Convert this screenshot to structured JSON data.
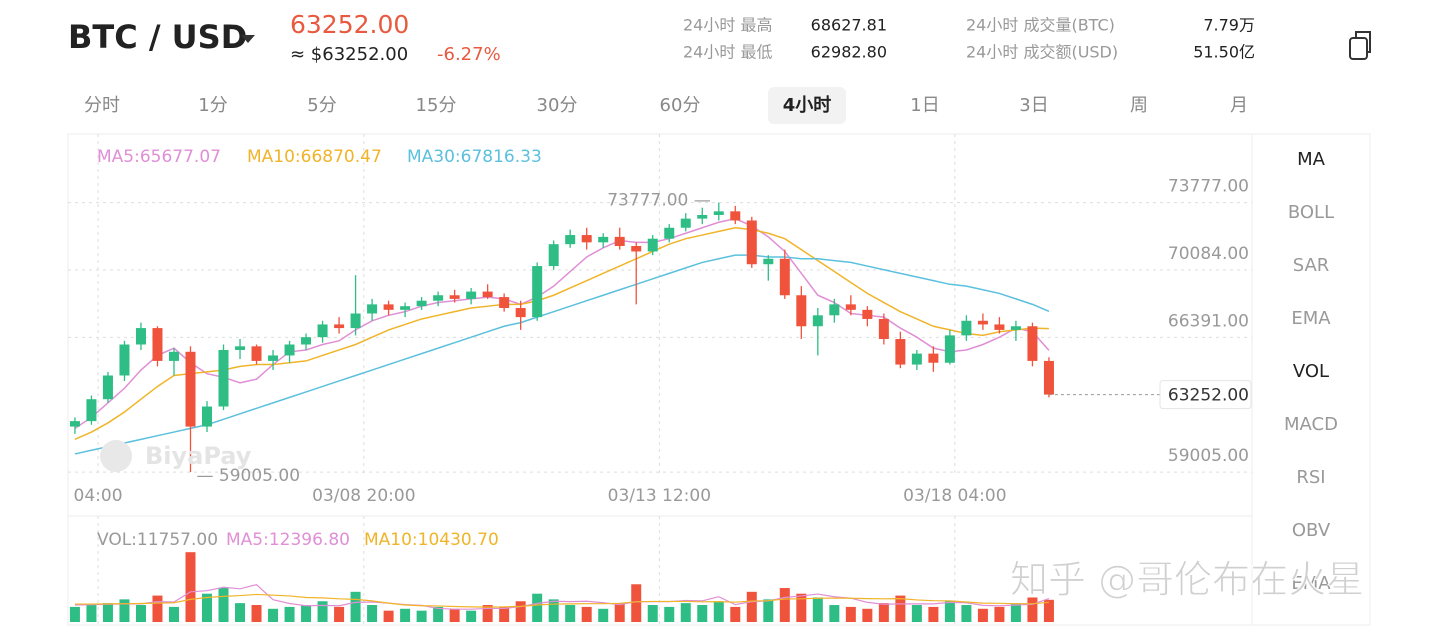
{
  "header": {
    "pair": "BTC / USD",
    "price": "63252.00",
    "approx": "≈ $63252.00",
    "change": "-6.27%",
    "stats": [
      {
        "label": "24小时 最高",
        "value": "68627.81"
      },
      {
        "label": "24小时 最低",
        "value": "62982.80"
      },
      {
        "label": "24小时 成交量(BTC)",
        "value": "7.79万"
      },
      {
        "label": "24小时 成交额(USD)",
        "value": "51.50亿"
      }
    ]
  },
  "timeframes": [
    "分时",
    "1分",
    "5分",
    "15分",
    "30分",
    "60分",
    "4小时",
    "1日",
    "3日",
    "周",
    "月"
  ],
  "active_timeframe": 6,
  "indicators": [
    "MA",
    "BOLL",
    "SAR",
    "EMA",
    "VOL",
    "MACD",
    "RSI",
    "OBV",
    "EMA"
  ],
  "active_indicators": [
    0,
    4
  ],
  "watermarks": [
    "BiyaPay",
    "知乎 @哥伦布在火星"
  ],
  "chart_data": {
    "type": "candlestick",
    "up_color": "#2ebd85",
    "down_color": "#f0533c",
    "xlim": [
      -0.42,
      71.3
    ],
    "xticks": [
      {
        "value": 1.4,
        "label": "04:00"
      },
      {
        "value": 17.5,
        "label": "03/08 20:00"
      },
      {
        "value": 35.4,
        "label": "03/13 12:00"
      },
      {
        "value": 53.3,
        "label": "03/18 04:00"
      }
    ],
    "ylim": [
      58900,
      77540
    ],
    "yticks": [
      {
        "value": 73777,
        "label": "73777.00"
      },
      {
        "value": 70084,
        "label": "70084.00"
      },
      {
        "value": 66391,
        "label": "66391.00"
      },
      {
        "value": 59005,
        "label": "59005.00"
      }
    ],
    "grid": true,
    "open": [
      61500,
      61800,
      63000,
      64300,
      66000,
      66900,
      65100,
      65600,
      61500,
      62600,
      65700,
      65900,
      65100,
      65400,
      66000,
      66400,
      67100,
      66900,
      67700,
      68200,
      67900,
      68100,
      68400,
      68700,
      68500,
      68900,
      68600,
      68000,
      67500,
      70300,
      71500,
      72000,
      71600,
      71900,
      71400,
      71100,
      71800,
      72400,
      72900,
      73100,
      73300,
      72800,
      70400,
      70700,
      68700,
      67000,
      67600,
      68200,
      67900,
      67400,
      66300,
      64900,
      65500,
      65000,
      66500,
      67300,
      67100,
      66800,
      67000,
      65100
    ],
    "high": [
      62000,
      63200,
      64500,
      66200,
      67200,
      67000,
      65800,
      65900,
      62900,
      66000,
      66300,
      66000,
      65700,
      66200,
      66600,
      67300,
      67500,
      69800,
      68500,
      68400,
      68300,
      68600,
      68900,
      69000,
      69100,
      69300,
      68800,
      68400,
      70500,
      71700,
      72300,
      72400,
      72100,
      72400,
      71600,
      72000,
      72600,
      73200,
      73500,
      73777,
      73600,
      73000,
      70900,
      71200,
      69200,
      68000,
      68500,
      68700,
      68100,
      67700,
      66700,
      65700,
      65900,
      66800,
      67600,
      67700,
      67500,
      67300,
      67200,
      65300
    ],
    "low": [
      61100,
      61600,
      62800,
      64000,
      65700,
      64800,
      64300,
      59005,
      61200,
      62400,
      65200,
      64900,
      64600,
      65000,
      65700,
      66100,
      66600,
      66500,
      67300,
      67600,
      67500,
      67900,
      68100,
      68300,
      68200,
      68500,
      67800,
      66800,
      67300,
      70100,
      71300,
      71200,
      71300,
      71200,
      68200,
      70900,
      71600,
      72200,
      72600,
      72800,
      72600,
      70200,
      69500,
      68500,
      66300,
      65400,
      67200,
      67600,
      67000,
      66000,
      64700,
      64600,
      64500,
      64900,
      66200,
      66800,
      66600,
      66200,
      64800,
      63100
    ],
    "close": [
      61800,
      63000,
      64300,
      66000,
      66900,
      65100,
      65600,
      61500,
      62600,
      65700,
      65900,
      65100,
      65400,
      66000,
      66400,
      67100,
      66900,
      67700,
      68200,
      67900,
      68100,
      68400,
      68700,
      68500,
      68900,
      68600,
      68000,
      67500,
      70300,
      71500,
      72000,
      71600,
      71900,
      71400,
      71100,
      71800,
      72400,
      72900,
      73100,
      73300,
      72800,
      70400,
      70700,
      68700,
      67000,
      67600,
      68200,
      67900,
      67400,
      66300,
      64900,
      65500,
      65000,
      66500,
      67300,
      67100,
      66800,
      67000,
      65100,
      63252
    ],
    "ma": [
      {
        "label": "MA5:65677.07",
        "color": "#e08fd6",
        "values": [
          61400,
          62000,
          62800,
          63600,
          64600,
          65400,
          65800,
          65000,
          64400,
          64200,
          63900,
          64100,
          64900,
          65600,
          65700,
          66000,
          66200,
          66800,
          67300,
          67600,
          67800,
          68100,
          68300,
          68400,
          68500,
          68600,
          68500,
          68200,
          68600,
          69200,
          70000,
          70800,
          71300,
          71700,
          71600,
          71600,
          71800,
          72100,
          72400,
          72700,
          72900,
          72500,
          71900,
          71100,
          69900,
          68700,
          68300,
          67700,
          67600,
          67500,
          66900,
          66400,
          65800,
          65600,
          65700,
          66000,
          66400,
          66900,
          66700,
          65677.07
        ]
      },
      {
        "label": "MA10:66870.47",
        "color": "#f0b429",
        "values": [
          60800,
          61200,
          61700,
          62300,
          63000,
          63700,
          64300,
          64400,
          64500,
          64600,
          64800,
          64900,
          64900,
          65000,
          65100,
          65400,
          65700,
          66000,
          66400,
          66800,
          67100,
          67400,
          67600,
          67800,
          68000,
          68100,
          68200,
          68200,
          68400,
          68700,
          69100,
          69500,
          69900,
          70300,
          70700,
          71100,
          71500,
          71800,
          72000,
          72200,
          72400,
          72300,
          72100,
          71800,
          71200,
          70600,
          70000,
          69400,
          68800,
          68300,
          67800,
          67400,
          67000,
          66800,
          66600,
          66500,
          66700,
          66800,
          66900,
          66870.47
        ]
      },
      {
        "label": "MA30:67816.33",
        "color": "#5bc0de",
        "values": [
          60000,
          60200,
          60400,
          60600,
          60800,
          61000,
          61200,
          61400,
          61600,
          61900,
          62200,
          62500,
          62800,
          63100,
          63400,
          63700,
          64000,
          64300,
          64600,
          64900,
          65200,
          65500,
          65800,
          66100,
          66400,
          66700,
          67000,
          67200,
          67500,
          67800,
          68100,
          68400,
          68700,
          69000,
          69300,
          69600,
          69900,
          70200,
          70500,
          70700,
          70900,
          70900,
          70800,
          70800,
          70700,
          70700,
          70600,
          70500,
          70300,
          70100,
          69900,
          69700,
          69500,
          69300,
          69200,
          69000,
          68800,
          68500,
          68200,
          67816.33
        ]
      }
    ],
    "high_marker": {
      "value": 73777,
      "label": "73777.00 —"
    },
    "low_marker": {
      "value": 59005,
      "label": "— 59005.00"
    },
    "last_price": {
      "value": 63252,
      "label": "63252.00"
    },
    "volume": {
      "label": "VOL:11757.00",
      "ylim": [
        0,
        53000
      ],
      "values": [
        8000,
        9000,
        10000,
        12000,
        9000,
        14000,
        8000,
        37000,
        15000,
        18000,
        10000,
        9000,
        7000,
        8000,
        9000,
        11000,
        8000,
        16000,
        9000,
        6000,
        7000,
        6000,
        8000,
        7000,
        6000,
        9000,
        8000,
        11000,
        15000,
        12000,
        9000,
        8000,
        7000,
        10000,
        20000,
        9000,
        8000,
        10000,
        9000,
        11000,
        8000,
        16000,
        12000,
        18000,
        15000,
        13000,
        9000,
        8000,
        7000,
        10000,
        14000,
        9000,
        8000,
        11000,
        9000,
        7000,
        8000,
        10000,
        13000,
        11757
      ],
      "series": [
        {
          "label": "MA5:12396.80",
          "color": "#e08fd6",
          "values": [
            9000,
            9200,
            9400,
            9600,
            9600,
            10800,
            10600,
            16000,
            16600,
            18400,
            17600,
            19800,
            11800,
            9800,
            8600,
            8800,
            8600,
            10400,
            10600,
            10000,
            9200,
            8800,
            7200,
            6800,
            6800,
            7200,
            7200,
            8200,
            9800,
            11000,
            10800,
            11000,
            10200,
            9200,
            10800,
            10800,
            10800,
            11400,
            11200,
            13400,
            9200,
            10800,
            11200,
            13000,
            13800,
            14800,
            13400,
            12600,
            10400,
            9400,
            9600,
            9600,
            9600,
            10400,
            10200,
            8800,
            8600,
            9000,
            9400,
            12396.8
          ]
        },
        {
          "label": "MA10:10430.70",
          "color": "#f0b429",
          "values": [
            9500,
            9500,
            9600,
            9700,
            9800,
            10000,
            10200,
            12000,
            13000,
            13600,
            14000,
            14600,
            14200,
            13800,
            13000,
            12800,
            12300,
            12000,
            11200,
            10000,
            9000,
            8600,
            8500,
            8200,
            8000,
            7900,
            8000,
            8300,
            9000,
            9500,
            9600,
            9700,
            9700,
            9900,
            10700,
            10900,
            10900,
            10900,
            10700,
            10800,
            10500,
            11100,
            11300,
            12200,
            12300,
            12600,
            12700,
            12600,
            12400,
            12300,
            12400,
            11700,
            11300,
            11200,
            10600,
            10000,
            9900,
            9700,
            9700,
            10430.7
          ]
        }
      ]
    }
  }
}
